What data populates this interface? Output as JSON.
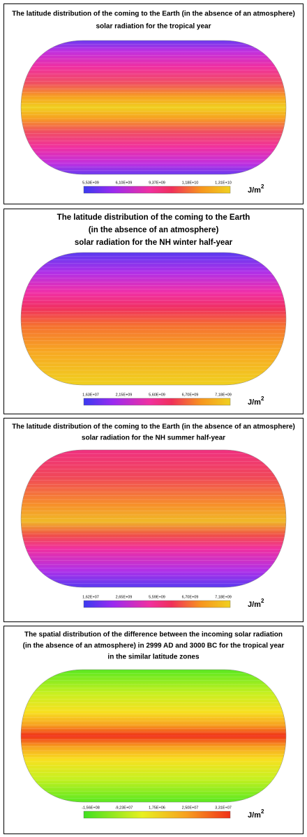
{
  "panels": [
    {
      "title": [
        "The latitude distribution of the coming to the Earth (in the absence of an atmosphere)",
        "solar radiation for the tropical year"
      ],
      "ticks": [
        "5,53E+09",
        "6,10E+09",
        "9,37E+09",
        "1,18E+10",
        "1,31E+10"
      ],
      "unit": {
        "base": "J/m",
        "sup": "2"
      }
    },
    {
      "title": [
        "The latitude distribution of the coming to the Earth",
        "(in the absence of an atmosphere)",
        "solar radiation for the NH winter half-year"
      ],
      "ticks": [
        "1,63E+07",
        "2,15E+09",
        "5,60E+09",
        "6,70E+09",
        "7,18E+09"
      ],
      "unit": {
        "base": "J/m",
        "sup": "2"
      }
    },
    {
      "title": [
        "The latitude distribution of the coming to the Earth (in the absence of an atmosphere)",
        "solar radiation for the NH summer half-year"
      ],
      "ticks": [
        "1,62E+07",
        "2,65E+09",
        "5,59E+09",
        "6,70E+09",
        "7,18E+09"
      ],
      "unit": {
        "base": "J/m",
        "sup": "2"
      }
    },
    {
      "title": [
        "The spatial distribution of the difference between the incoming solar radiation",
        "(in the absence of an atmosphere) in 2999 AD and 3000 BC for the tropical year",
        "in the similar latitude zones"
      ],
      "ticks": [
        "-1,56E+08",
        "-9,23E+07",
        "1,75E+06",
        "2,50E+07",
        "3,31E+07"
      ],
      "unit": {
        "base": "J/m",
        "sup": "2"
      }
    }
  ]
}
